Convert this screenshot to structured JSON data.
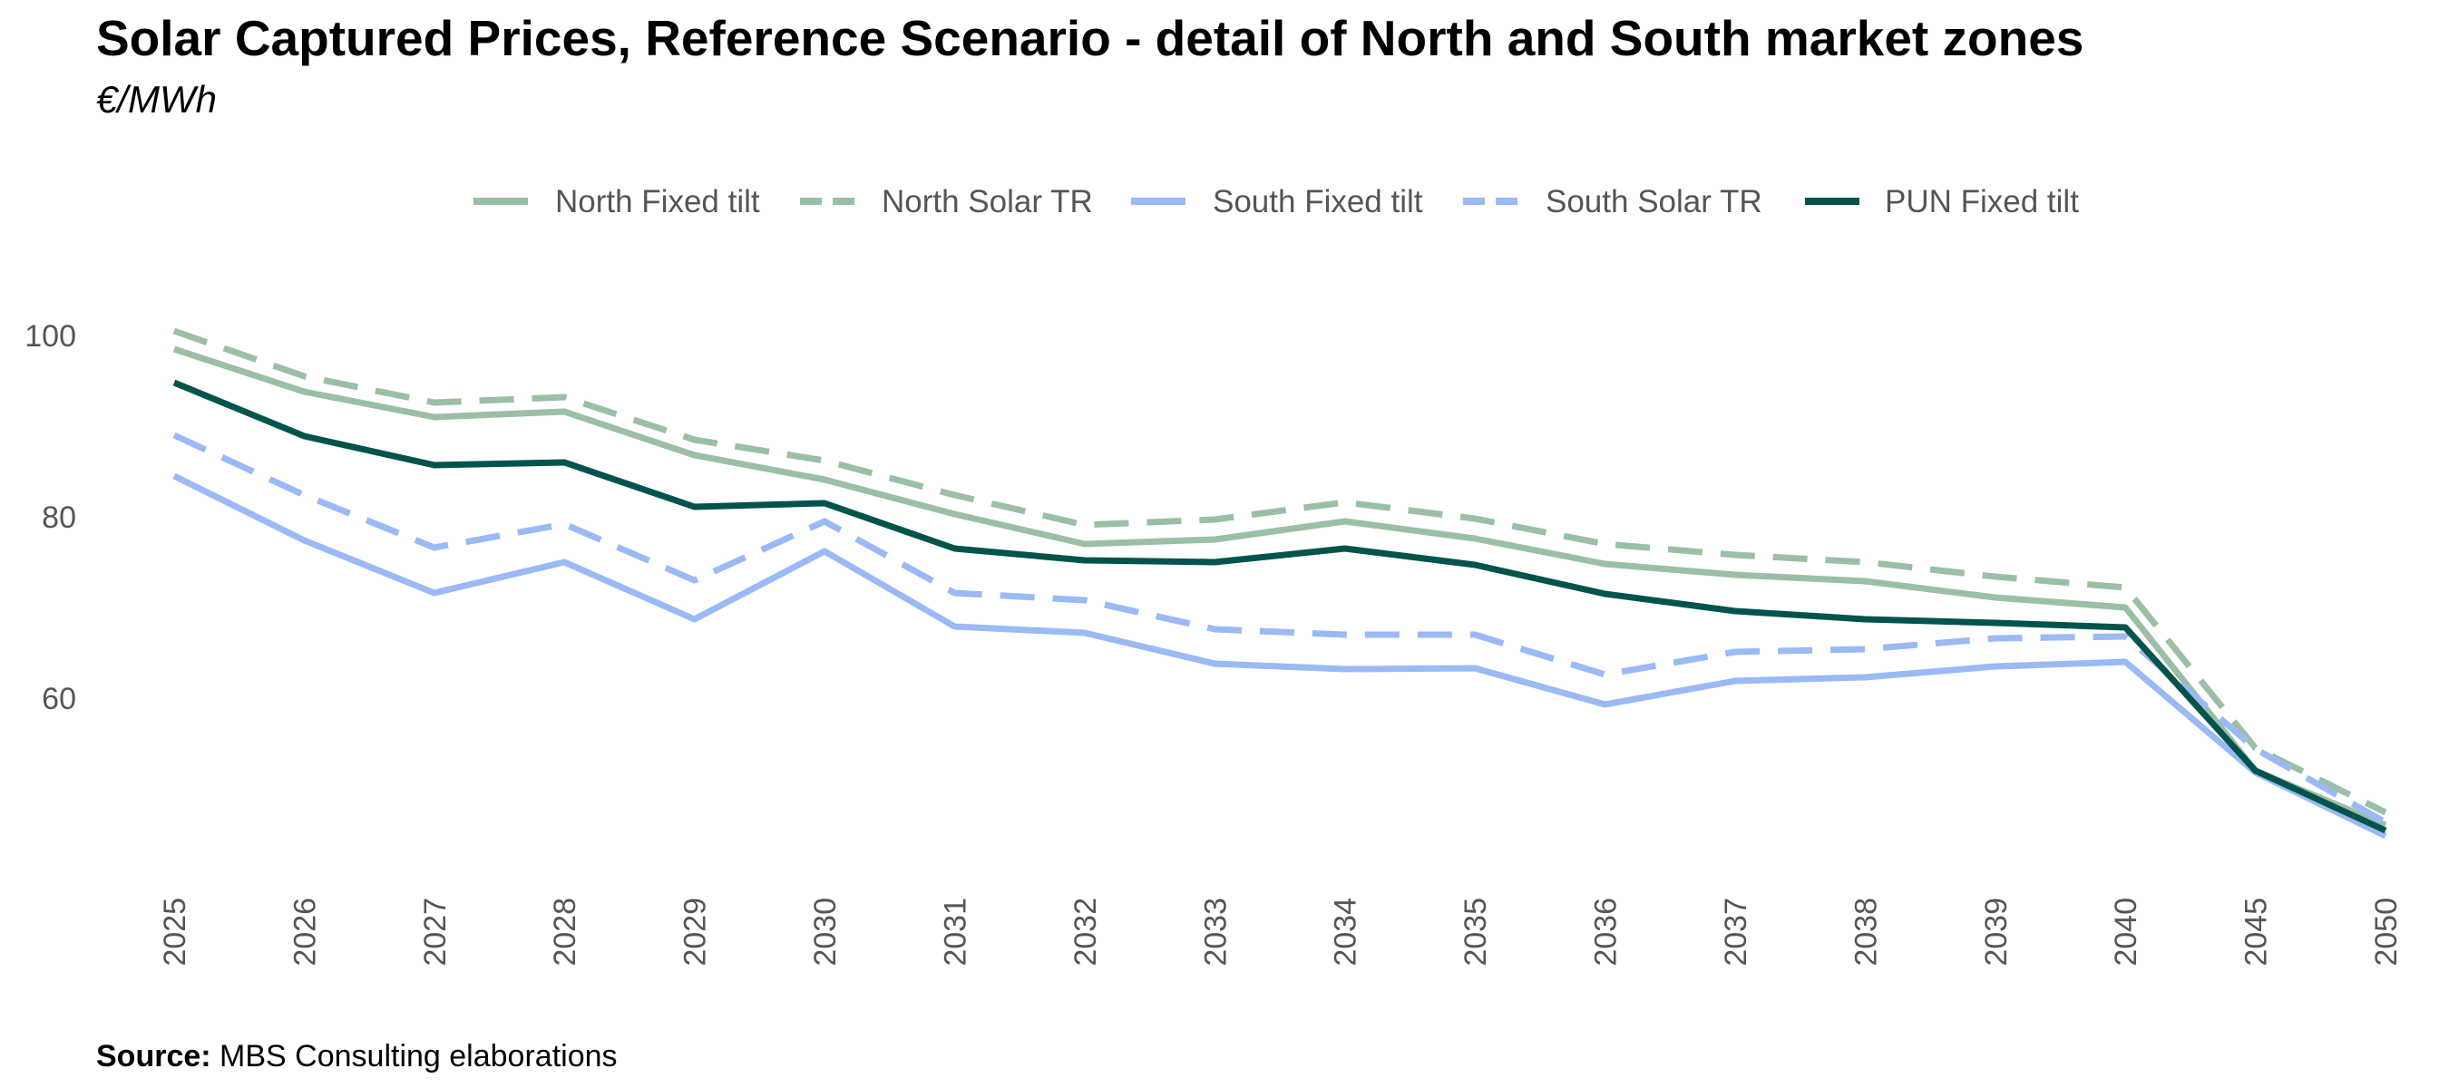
{
  "chart_data": {
    "type": "line",
    "title": "Solar Captured Prices, Reference Scenario - detail of North and South market zones",
    "subtitle": "€/MWh",
    "xlabel": "",
    "ylabel": "",
    "categories": [
      "2025",
      "2026",
      "2027",
      "2028",
      "2029",
      "2030",
      "2031",
      "2032",
      "2033",
      "2034",
      "2035",
      "2036",
      "2037",
      "2038",
      "2039",
      "2040",
      "2045",
      "2050"
    ],
    "ylim": [
      42,
      104
    ],
    "yticks": [
      60,
      80,
      100
    ],
    "ytick_labels": [
      "60",
      "80",
      "100"
    ],
    "grid": false,
    "legend_position": "top",
    "series": [
      {
        "name": "North Fixed tilt",
        "color": "#9bbfa5",
        "dashed": false,
        "values": [
          98.5,
          93.8,
          91.0,
          91.6,
          86.8,
          84.1,
          80.3,
          77.0,
          77.5,
          79.5,
          77.6,
          74.8,
          73.6,
          72.9,
          71.1,
          70.0,
          52.0,
          46.0
        ]
      },
      {
        "name": "North Solar TR",
        "color": "#9bbfa5",
        "dashed": true,
        "values": [
          100.5,
          95.5,
          92.6,
          93.2,
          88.5,
          86.2,
          82.4,
          79.1,
          79.7,
          81.6,
          79.8,
          77.0,
          75.8,
          75.0,
          73.4,
          72.2,
          54.5,
          47.4
        ]
      },
      {
        "name": "South Fixed tilt",
        "color": "#9ab9f5",
        "dashed": false,
        "values": [
          84.5,
          77.4,
          71.6,
          75.0,
          68.7,
          76.2,
          67.9,
          67.2,
          63.8,
          63.2,
          63.3,
          59.3,
          61.9,
          62.3,
          63.5,
          64.0,
          51.8,
          44.8
        ]
      },
      {
        "name": "South Solar TR",
        "color": "#9ab9f5",
        "dashed": true,
        "values": [
          89.0,
          82.4,
          76.6,
          79.2,
          73.0,
          79.5,
          71.6,
          70.8,
          67.6,
          67.0,
          67.0,
          62.6,
          65.1,
          65.4,
          66.6,
          66.8,
          54.4,
          46.3
        ]
      },
      {
        "name": "PUN Fixed tilt",
        "color": "#00544c",
        "dashed": false,
        "values": [
          94.8,
          88.9,
          85.7,
          86.0,
          81.1,
          81.5,
          76.5,
          75.2,
          75.0,
          76.5,
          74.7,
          71.5,
          69.6,
          68.7,
          68.3,
          67.8,
          52.0,
          45.4
        ]
      }
    ]
  },
  "source": {
    "label": "Source:",
    "text": "MBS Consulting elaborations"
  }
}
